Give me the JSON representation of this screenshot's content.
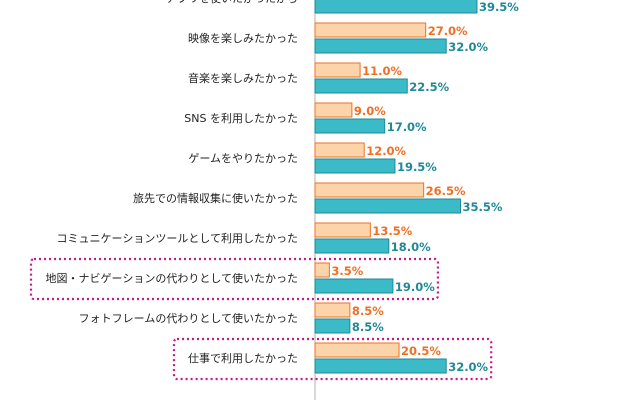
{
  "chart_data": {
    "type": "bar",
    "orientation": "horizontal",
    "categories": [
      "アプリを使いたかったから",
      "映像を楽しみたかった",
      "音楽を楽しみたかった",
      "SNS を利用したかった",
      "ゲームをやりたかった",
      "旅先での情報収集に使いたかった",
      "コミュニケーションツールとして利用したかった",
      "地図・ナビゲーションの代わりとして使いたかった",
      "フォトフレームの代わりとして使いたかった",
      "仕事で利用したかった"
    ],
    "series": [
      {
        "values": [
          null,
          27.0,
          11.0,
          9.0,
          12.0,
          26.5,
          13.5,
          3.5,
          8.5,
          20.5
        ],
        "labels": [
          "",
          "27.0%",
          "11.0%",
          "9.0%",
          "12.0%",
          "26.5%",
          "13.5%",
          "3.5%",
          "8.5%",
          "20.5%"
        ],
        "color": "#f26f22",
        "fill": "#fcd4aa"
      },
      {
        "values": [
          39.5,
          32.0,
          22.5,
          17.0,
          19.5,
          35.5,
          18.0,
          19.0,
          8.5,
          32.0
        ],
        "labels": [
          "39.5%",
          "32.0%",
          "22.5%",
          "17.0%",
          "19.5%",
          "35.5%",
          "18.0%",
          "19.0%",
          "8.5%",
          "32.0%"
        ],
        "color": "#1f8a97",
        "fill": "#3bbbc7"
      }
    ],
    "highlighted_categories": [
      "地図・ナビゲーションの代わりとして使いたかった",
      "仕事で利用したかった"
    ],
    "highlight_color": "#c8178a",
    "xlim": [
      0,
      50
    ],
    "grid": false,
    "legend": "none"
  }
}
